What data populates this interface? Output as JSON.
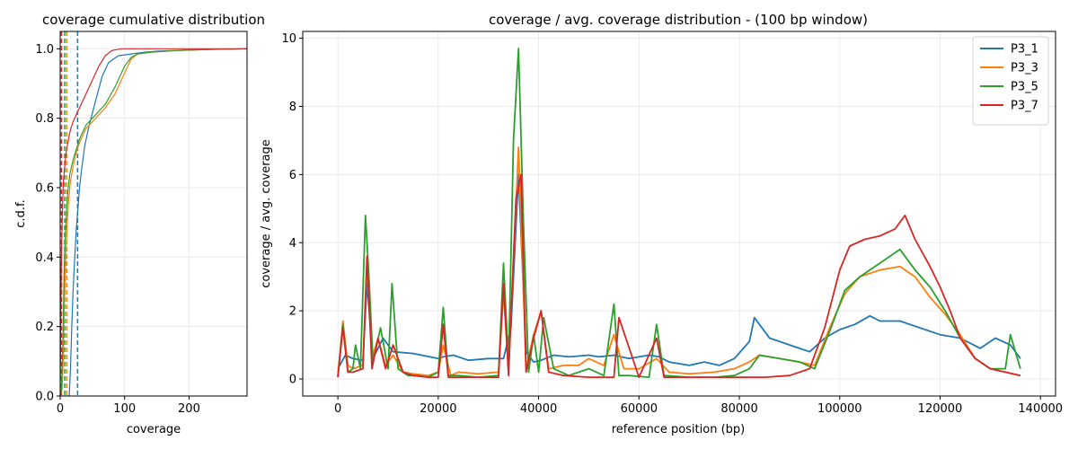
{
  "chart_data": [
    {
      "type": "line",
      "title": "coverage cumulative distribution",
      "xlabel": "coverage",
      "ylabel": "c.d.f.",
      "xlim": [
        0,
        290
      ],
      "ylim": [
        0,
        1.05
      ],
      "xticks": [
        0,
        100,
        200
      ],
      "yticks": [
        0.0,
        0.2,
        0.4,
        0.6,
        0.8,
        1.0
      ],
      "ytick_labels": [
        "0.0",
        "0.2",
        "0.4",
        "0.6",
        "0.8",
        "1.0"
      ],
      "grid": true,
      "legend": false,
      "series": [
        {
          "color": "#1f77b4",
          "x": [
            0,
            14,
            16,
            18,
            20,
            22,
            25,
            28,
            30,
            33,
            38,
            45,
            55,
            65,
            75,
            90,
            110,
            130,
            150,
            200,
            250,
            290
          ],
          "y": [
            0,
            0.0,
            0.08,
            0.2,
            0.3,
            0.38,
            0.48,
            0.55,
            0.6,
            0.65,
            0.72,
            0.78,
            0.85,
            0.92,
            0.96,
            0.98,
            0.985,
            0.99,
            0.993,
            0.997,
            0.999,
            1.0
          ]
        },
        {
          "color": "#ff7f0e",
          "x": [
            0,
            3,
            5,
            7,
            9,
            11,
            13,
            16,
            20,
            25,
            30,
            40,
            55,
            70,
            85,
            100,
            110,
            120,
            140,
            180,
            230,
            290
          ],
          "y": [
            0,
            0.02,
            0.12,
            0.3,
            0.42,
            0.5,
            0.56,
            0.62,
            0.66,
            0.7,
            0.73,
            0.77,
            0.8,
            0.83,
            0.87,
            0.93,
            0.97,
            0.985,
            0.99,
            0.995,
            0.998,
            1.0
          ]
        },
        {
          "color": "#2ca02c",
          "x": [
            0,
            2,
            4,
            6,
            8,
            10,
            12,
            15,
            20,
            25,
            30,
            40,
            55,
            70,
            85,
            100,
            110,
            120,
            140,
            180,
            230,
            290
          ],
          "y": [
            0,
            0.02,
            0.15,
            0.35,
            0.47,
            0.54,
            0.59,
            0.64,
            0.68,
            0.71,
            0.74,
            0.78,
            0.81,
            0.84,
            0.89,
            0.95,
            0.975,
            0.985,
            0.99,
            0.995,
            0.998,
            1.0
          ]
        },
        {
          "color": "#d62728",
          "x": [
            0,
            1,
            2,
            3,
            4,
            5,
            7,
            9,
            12,
            15,
            20,
            25,
            30,
            40,
            50,
            60,
            70,
            80,
            95,
            120,
            200,
            290
          ],
          "y": [
            0,
            0.25,
            0.4,
            0.5,
            0.57,
            0.62,
            0.66,
            0.7,
            0.73,
            0.76,
            0.79,
            0.81,
            0.83,
            0.87,
            0.91,
            0.95,
            0.98,
            0.995,
            1.0,
            1.0,
            1.0,
            1.0
          ]
        }
      ],
      "vlines": [
        {
          "color": "#1f77b4",
          "x": 27
        },
        {
          "color": "#ff7f0e",
          "x": 10
        },
        {
          "color": "#2ca02c",
          "x": 7
        },
        {
          "color": "#d62728",
          "x": 2
        }
      ]
    },
    {
      "type": "line",
      "title": "coverage / avg. coverage distribution - (100 bp window)",
      "xlabel": "reference position (bp)",
      "ylabel": "coverage / avg. coverage",
      "xlim": [
        -7000,
        143000
      ],
      "ylim": [
        -0.5,
        10.2
      ],
      "xticks": [
        0,
        20000,
        40000,
        60000,
        80000,
        100000,
        120000,
        140000
      ],
      "yticks": [
        0,
        2,
        4,
        6,
        8,
        10
      ],
      "grid": true,
      "legend": "upper right",
      "series": [
        {
          "name": "P3_1",
          "color": "#1f77b4",
          "x": [
            0,
            1500,
            3000,
            5000,
            5800,
            7000,
            9000,
            11000,
            15000,
            20000,
            21000,
            23000,
            26000,
            30000,
            33000,
            34500,
            36000,
            37500,
            39000,
            40500,
            43000,
            46000,
            50000,
            52000,
            55000,
            58000,
            62000,
            64000,
            66000,
            70000,
            73000,
            76000,
            79000,
            82000,
            83000,
            86000,
            90000,
            94000,
            97000,
            100000,
            103000,
            106000,
            108000,
            112000,
            116000,
            120000,
            124000,
            128000,
            131000,
            134000,
            136000
          ],
          "y": [
            0.3,
            0.7,
            0.6,
            0.55,
            2.8,
            0.6,
            1.2,
            0.8,
            0.75,
            0.6,
            0.65,
            0.7,
            0.55,
            0.6,
            0.6,
            1.5,
            6.0,
            0.8,
            0.5,
            0.55,
            0.7,
            0.65,
            0.7,
            0.65,
            0.7,
            0.6,
            0.7,
            0.65,
            0.5,
            0.4,
            0.5,
            0.4,
            0.6,
            1.1,
            1.8,
            1.2,
            1.0,
            0.8,
            1.2,
            1.45,
            1.6,
            1.85,
            1.7,
            1.7,
            1.5,
            1.3,
            1.2,
            0.9,
            1.2,
            1.0,
            0.6
          ]
        },
        {
          "name": "P3_3",
          "color": "#ff7f0e",
          "x": [
            0,
            1000,
            2000,
            3000,
            5000,
            5800,
            6800,
            8000,
            9500,
            11000,
            13000,
            15000,
            18000,
            20000,
            21000,
            22500,
            24000,
            28000,
            32000,
            33000,
            34000,
            36000,
            37500,
            39000,
            40500,
            42000,
            45000,
            48000,
            50000,
            53000,
            55000,
            57000,
            60000,
            63500,
            66000,
            70000,
            75000,
            79000,
            82000,
            84000,
            88000,
            92000,
            95000,
            98000,
            101000,
            104000,
            108000,
            112000,
            115000,
            118000,
            121000,
            124000,
            127000,
            130000,
            133000,
            136000
          ],
          "y": [
            0.1,
            1.7,
            0.4,
            0.3,
            0.4,
            3.4,
            0.6,
            1.2,
            0.4,
            0.7,
            0.2,
            0.15,
            0.1,
            0.2,
            1.0,
            0.1,
            0.2,
            0.15,
            0.2,
            2.5,
            0.3,
            6.8,
            0.3,
            1.3,
            2.0,
            0.3,
            0.4,
            0.4,
            0.6,
            0.4,
            1.3,
            0.3,
            0.3,
            0.6,
            0.2,
            0.15,
            0.2,
            0.3,
            0.5,
            0.7,
            0.6,
            0.5,
            0.4,
            1.5,
            2.5,
            3.0,
            3.2,
            3.3,
            3.0,
            2.4,
            1.9,
            1.3,
            0.6,
            0.3,
            0.2,
            0.1
          ]
        },
        {
          "name": "P3_5",
          "color": "#2ca02c",
          "x": [
            0,
            1000,
            2000,
            3000,
            3500,
            4500,
            5500,
            6200,
            7000,
            8500,
            10000,
            10800,
            12000,
            14000,
            16000,
            18000,
            20000,
            21000,
            22000,
            24000,
            28000,
            32000,
            33000,
            34000,
            35000,
            36000,
            37000,
            38000,
            39000,
            40000,
            41000,
            43000,
            46000,
            50000,
            53000,
            55000,
            56000,
            58000,
            62000,
            63500,
            65000,
            70000,
            75000,
            79000,
            82000,
            84000,
            88000,
            92000,
            95000,
            98000,
            101000,
            104000,
            108000,
            112000,
            115000,
            118000,
            121000,
            124000,
            127000,
            130000,
            133000,
            134000,
            136000
          ],
          "y": [
            0.05,
            1.6,
            0.2,
            0.3,
            1.0,
            0.3,
            4.8,
            3.0,
            0.5,
            1.5,
            0.3,
            2.8,
            0.3,
            0.1,
            0.1,
            0.05,
            0.2,
            2.1,
            0.1,
            0.1,
            0.05,
            0.1,
            3.4,
            0.4,
            7.0,
            9.7,
            4.5,
            0.2,
            1.3,
            0.2,
            1.8,
            0.3,
            0.1,
            0.3,
            0.1,
            2.2,
            0.1,
            0.1,
            0.05,
            1.6,
            0.1,
            0.05,
            0.05,
            0.1,
            0.3,
            0.7,
            0.6,
            0.5,
            0.3,
            1.4,
            2.6,
            3.0,
            3.4,
            3.8,
            3.2,
            2.7,
            2.0,
            1.2,
            0.6,
            0.3,
            0.3,
            1.3,
            0.3
          ]
        },
        {
          "name": "P3_7",
          "color": "#d62728",
          "x": [
            0,
            1000,
            2000,
            3000,
            5000,
            5800,
            6800,
            8000,
            9500,
            11000,
            13000,
            15000,
            18000,
            20000,
            21000,
            22000,
            24000,
            28000,
            32000,
            33000,
            34000,
            35500,
            36500,
            37500,
            39000,
            40500,
            42000,
            45000,
            50000,
            55000,
            56000,
            60000,
            63500,
            65000,
            70000,
            75000,
            80000,
            85000,
            90000,
            94000,
            97000,
            100000,
            102000,
            105000,
            108000,
            111000,
            113000,
            115000,
            118000,
            120000,
            122000,
            124000,
            127000,
            130000,
            133000,
            136000
          ],
          "y": [
            0.05,
            1.5,
            0.2,
            0.2,
            0.3,
            3.6,
            0.3,
            1.2,
            0.3,
            1.0,
            0.2,
            0.1,
            0.05,
            0.05,
            1.6,
            0.05,
            0.05,
            0.05,
            0.05,
            2.8,
            0.1,
            5.3,
            6.0,
            0.2,
            1.2,
            2.0,
            0.2,
            0.1,
            0.05,
            0.05,
            1.8,
            0.05,
            1.2,
            0.05,
            0.05,
            0.05,
            0.05,
            0.05,
            0.1,
            0.3,
            1.5,
            3.2,
            3.9,
            4.1,
            4.2,
            4.4,
            4.8,
            4.1,
            3.3,
            2.7,
            2.0,
            1.2,
            0.6,
            0.3,
            0.2,
            0.1
          ]
        }
      ]
    }
  ]
}
